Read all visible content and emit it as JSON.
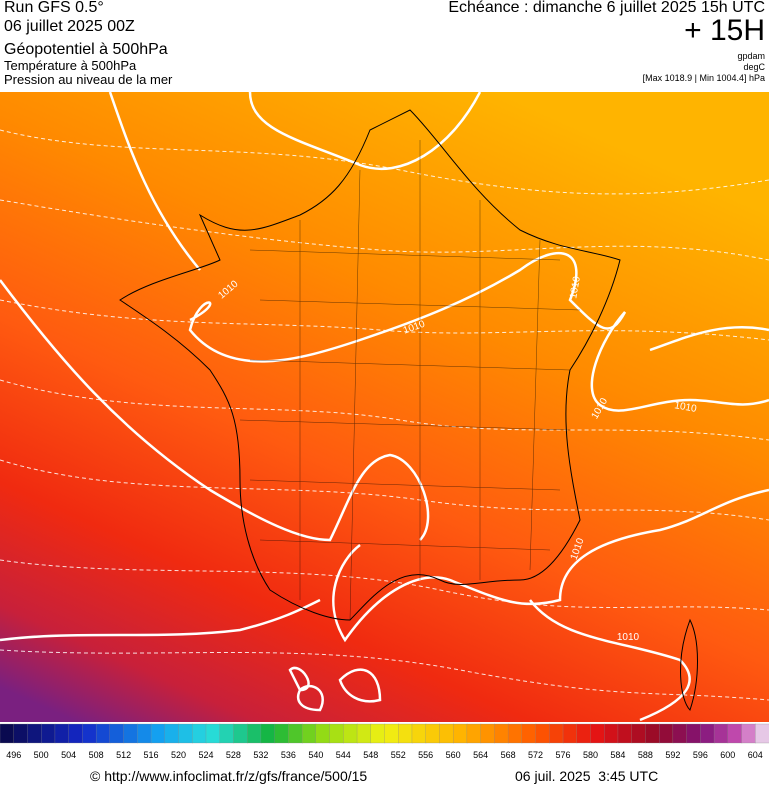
{
  "header": {
    "run": "Run GFS 0.5°",
    "date": "06 juillet 2025 00Z",
    "fields": [
      "Géopotentiel à 500hPa",
      "Température à 500hPa",
      "Pression au niveau de la mer"
    ],
    "echeance": "Echéance : dimanche 6 juillet 2025 15h UTC",
    "lead": "+ 15H",
    "units": [
      "gpdam",
      "degC",
      "[Max 1018.9 | Min 1004.4] hPa"
    ]
  },
  "map": {
    "isobar_labels": [
      "1010",
      "1010",
      "1010",
      "1010",
      "1010",
      "1010",
      "1010"
    ]
  },
  "colorbar": {
    "labels": [
      496,
      500,
      504,
      508,
      512,
      516,
      520,
      524,
      528,
      532,
      536,
      540,
      544,
      548,
      552,
      556,
      560,
      564,
      568,
      572,
      576,
      580,
      584,
      588,
      592,
      596,
      600,
      604
    ]
  },
  "footer": {
    "source": "© http://www.infoclimat.fr/z/gfs/france/500/15",
    "timestamp": "06 juil. 2025  3:45 UTC"
  }
}
